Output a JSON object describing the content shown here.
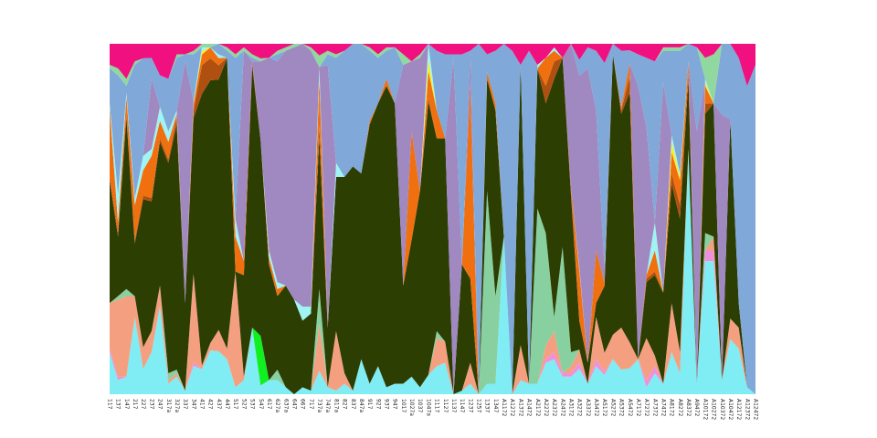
{
  "chart_data": {
    "type": "area",
    "stacking": "percent",
    "title": "",
    "xlabel": "",
    "ylabel": "",
    "ylim": [
      0,
      1
    ],
    "grid": false,
    "legend": "none",
    "categories": [
      "117",
      "137",
      "147",
      "217",
      "227",
      "237",
      "247",
      "317a",
      "327a",
      "337",
      "347",
      "417",
      "427",
      "437",
      "447",
      "517",
      "527",
      "537",
      "547",
      "617",
      "627a",
      "637a",
      "647",
      "667",
      "717",
      "737a",
      "747a",
      "817a",
      "827",
      "837",
      "847a",
      "917",
      "927",
      "937",
      "947",
      "1017",
      "1027a",
      "1037",
      "1047a",
      "1117",
      "1127",
      "1137",
      "1147",
      "1237",
      "1257",
      "1337",
      "1347",
      "A1172",
      "A1272",
      "A1372",
      "A1472",
      "A2172",
      "A2272",
      "A2372",
      "A2472",
      "A3172",
      "A3272",
      "A3372",
      "A3472",
      "A5172",
      "A5272",
      "A5372",
      "A5472",
      "A7172",
      "A7272",
      "A7372",
      "A7472",
      "A8172",
      "A8272",
      "A8372",
      "A9472",
      "A10172",
      "A10272",
      "A10372",
      "A10472",
      "A12172",
      "A12372",
      "A12472"
    ],
    "colors": {
      "cyan_base": "#80ecf4",
      "pink": "#f090d8",
      "salmon": "#f4a080",
      "mint": "#88d0a0",
      "bright_green": "#10f020",
      "dark_green": "#2c3e02",
      "brown": "#b05010",
      "orange": "#f07010",
      "yellow": "#f8f020",
      "light_cyan": "#a0f4f4",
      "lavender": "#a088c0",
      "steel_blue": "#80a8d8",
      "light_green": "#90d8a0",
      "magenta": "#f01080"
    },
    "series": [
      {
        "color_key": "cyan_base",
        "values": [
          0.12,
          0.04,
          0.05,
          0.22,
          0.07,
          0.12,
          0.25,
          0.03,
          0.05,
          0.01,
          0.08,
          0.07,
          0.12,
          0.12,
          0.1,
          0.02,
          0.04,
          0.19,
          0.03,
          0.04,
          0.04,
          0.02,
          0.0,
          0.02,
          0.01,
          0.02,
          0.02,
          0.01,
          0.03,
          0.01,
          0.1,
          0.03,
          0.08,
          0.02,
          0.03,
          0.03,
          0.05,
          0.02,
          0.05,
          0.08,
          0.09,
          0.0,
          0.01,
          0.03,
          0.0,
          0.03,
          0.03,
          0.45,
          0.0,
          0.04,
          0.03,
          0.03,
          0.09,
          0.1,
          0.05,
          0.05,
          0.08,
          0.03,
          0.08,
          0.06,
          0.1,
          0.07,
          0.08,
          0.1,
          0.02,
          0.06,
          0.03,
          0.12,
          0.06,
          0.7,
          0.03,
          0.38,
          0.38,
          0.04,
          0.16,
          0.13,
          0.02,
          0.0
        ]
      },
      {
        "color_key": "pink",
        "values": [
          0.01,
          0.01,
          0.0,
          0.0,
          0.0,
          0.0,
          0.0,
          0.0,
          0.0,
          0.0,
          0.01,
          0.0,
          0.0,
          0.0,
          0.0,
          0.0,
          0.0,
          0.0,
          0.0,
          0.0,
          0.0,
          0.0,
          0.0,
          0.0,
          0.0,
          0.0,
          0.0,
          0.0,
          0.0,
          0.0,
          0.0,
          0.0,
          0.0,
          0.0,
          0.0,
          0.0,
          0.0,
          0.0,
          0.0,
          0.0,
          0.0,
          0.0,
          0.0,
          0.0,
          0.0,
          0.0,
          0.0,
          0.0,
          0.0,
          0.0,
          0.0,
          0.0,
          0.01,
          0.02,
          0.01,
          0.01,
          0.02,
          0.0,
          0.02,
          0.01,
          0.0,
          0.0,
          0.0,
          0.0,
          0.02,
          0.02,
          0.0,
          0.0,
          0.0,
          0.0,
          0.0,
          0.03,
          0.03,
          0.0,
          0.0,
          0.0,
          0.0,
          0.0
        ]
      },
      {
        "color_key": "salmon",
        "values": [
          0.13,
          0.22,
          0.23,
          0.06,
          0.06,
          0.06,
          0.06,
          0.01,
          0.01,
          0.0,
          0.25,
          0.01,
          0.02,
          0.06,
          0.03,
          0.33,
          0.01,
          0.0,
          0.0,
          0.0,
          0.0,
          0.0,
          0.0,
          0.0,
          0.0,
          0.04,
          0.0,
          0.17,
          0.03,
          0.0,
          0.0,
          0.0,
          0.0,
          0.0,
          0.0,
          0.0,
          0.0,
          0.0,
          0.0,
          0.08,
          0.06,
          0.0,
          0.0,
          0.06,
          0.0,
          0.0,
          0.0,
          0.0,
          0.0,
          0.1,
          0.0,
          0.0,
          0.04,
          0.06,
          0.0,
          0.02,
          0.04,
          0.0,
          0.12,
          0.06,
          0.07,
          0.12,
          0.08,
          0.0,
          0.12,
          0.03,
          0.0,
          0.14,
          0.06,
          0.0,
          0.0,
          0.0,
          0.04,
          0.0,
          0.06,
          0.06,
          0.0,
          0.0
        ]
      },
      {
        "color_key": "mint",
        "values": [
          0.0,
          0.01,
          0.02,
          0.0,
          0.0,
          0.0,
          0.0,
          0.02,
          0.01,
          0.0,
          0.0,
          0.0,
          0.0,
          0.0,
          0.0,
          0.0,
          0.0,
          0.0,
          0.0,
          0.0,
          0.03,
          0.0,
          0.0,
          0.0,
          0.0,
          0.03,
          0.0,
          0.0,
          0.0,
          0.0,
          0.0,
          0.0,
          0.0,
          0.0,
          0.0,
          0.0,
          0.0,
          0.0,
          0.0,
          0.02,
          0.0,
          0.0,
          0.0,
          0.0,
          0.0,
          0.55,
          0.25,
          0.0,
          0.0,
          0.0,
          0.0,
          0.5,
          0.32,
          0.04,
          0.36,
          0.04,
          0.0,
          0.0,
          0.0,
          0.0,
          0.0,
          0.0,
          0.0,
          0.0,
          0.0,
          0.0,
          0.0,
          0.0,
          0.0,
          0.0,
          0.0,
          0.05,
          0.0,
          0.0,
          0.0,
          0.0,
          0.0,
          0.0
        ]
      },
      {
        "color_key": "bright_green",
        "values": [
          0.0,
          0.0,
          0.0,
          0.0,
          0.0,
          0.0,
          0.0,
          0.0,
          0.0,
          0.0,
          0.0,
          0.0,
          0.0,
          0.0,
          0.0,
          0.0,
          0.0,
          0.0,
          0.17,
          0.0,
          0.0,
          0.0,
          0.0,
          0.0,
          0.0,
          0.0,
          0.0,
          0.0,
          0.0,
          0.0,
          0.0,
          0.0,
          0.0,
          0.0,
          0.0,
          0.0,
          0.0,
          0.0,
          0.0,
          0.0,
          0.0,
          0.0,
          0.0,
          0.0,
          0.0,
          0.0,
          0.0,
          0.0,
          0.0,
          0.0,
          0.0,
          0.0,
          0.0,
          0.0,
          0.0,
          0.0,
          0.0,
          0.0,
          0.0,
          0.0,
          0.0,
          0.0,
          0.0,
          0.0,
          0.0,
          0.0,
          0.0,
          0.0,
          0.0,
          0.0,
          0.0,
          0.0,
          0.0,
          0.0,
          0.0,
          0.0,
          0.0,
          0.0
        ]
      },
      {
        "color_key": "dark_green",
        "values": [
          0.35,
          0.17,
          0.49,
          0.15,
          0.41,
          0.37,
          0.41,
          0.6,
          0.7,
          0.25,
          0.44,
          0.76,
          0.72,
          0.7,
          0.83,
          0.0,
          0.29,
          0.75,
          0.67,
          0.33,
          0.21,
          0.29,
          0.27,
          0.19,
          0.22,
          0.13,
          0.17,
          0.44,
          0.56,
          0.64,
          0.53,
          0.74,
          0.75,
          0.86,
          0.8,
          0.28,
          0.39,
          0.56,
          0.71,
          0.55,
          0.58,
          0.0,
          0.36,
          0.24,
          0.0,
          0.32,
          0.53,
          0.0,
          0.0,
          0.8,
          0.0,
          0.4,
          0.37,
          0.68,
          0.54,
          0.45,
          0.09,
          0.06,
          0.04,
          0.21,
          0.8,
          0.61,
          0.77,
          0.0,
          0.16,
          0.23,
          0.26,
          0.34,
          0.38,
          0.2,
          0.0,
          0.34,
          0.38,
          0.0,
          0.58,
          0.07,
          0.0,
          0.0
        ]
      },
      {
        "color_key": "brown",
        "values": [
          0.01,
          0.01,
          0.01,
          0.01,
          0.01,
          0.01,
          0.01,
          0.01,
          0.02,
          0.0,
          0.02,
          0.08,
          0.06,
          0.04,
          0.0,
          0.0,
          0.0,
          0.0,
          0.0,
          0.0,
          0.0,
          0.0,
          0.0,
          0.0,
          0.0,
          0.01,
          0.0,
          0.0,
          0.0,
          0.0,
          0.0,
          0.0,
          0.0,
          0.0,
          0.0,
          0.0,
          0.0,
          0.0,
          0.01,
          0.0,
          0.0,
          0.0,
          0.0,
          0.0,
          0.0,
          0.0,
          0.0,
          0.0,
          0.0,
          0.0,
          0.0,
          0.0,
          0.05,
          0.05,
          0.0,
          0.01,
          0.0,
          0.0,
          0.0,
          0.0,
          0.0,
          0.01,
          0.05,
          0.0,
          0.01,
          0.01,
          0.0,
          0.03,
          0.04,
          0.02,
          0.0,
          0.03,
          0.0,
          0.0,
          0.0,
          0.0,
          0.0,
          0.0
        ]
      },
      {
        "color_key": "orange",
        "values": [
          0.2,
          0.03,
          0.05,
          0.1,
          0.07,
          0.12,
          0.05,
          0.05,
          0.01,
          0.0,
          0.02,
          0.03,
          0.03,
          0.02,
          0.0,
          0.1,
          0.04,
          0.01,
          0.0,
          0.02,
          0.02,
          0.0,
          0.0,
          0.0,
          0.0,
          0.04,
          0.0,
          0.0,
          0.0,
          0.0,
          0.0,
          0.01,
          0.0,
          0.02,
          0.0,
          0.0,
          0.31,
          0.0,
          0.07,
          0.08,
          0.0,
          0.0,
          0.0,
          0.55,
          0.0,
          0.02,
          0.02,
          0.0,
          0.0,
          0.0,
          0.0,
          0.0,
          0.08,
          0.03,
          0.0,
          0.01,
          0.16,
          0.0,
          0.15,
          0.01,
          0.0,
          0.01,
          0.04,
          0.0,
          0.01,
          0.06,
          0.0,
          0.06,
          0.07,
          0.03,
          0.0,
          0.05,
          0.0,
          0.0,
          0.0,
          0.0,
          0.0,
          0.0
        ]
      },
      {
        "color_key": "yellow",
        "values": [
          0.0,
          0.0,
          0.0,
          0.0,
          0.0,
          0.0,
          0.0,
          0.0,
          0.0,
          0.0,
          0.0,
          0.01,
          0.0,
          0.0,
          0.0,
          0.0,
          0.0,
          0.0,
          0.0,
          0.0,
          0.0,
          0.0,
          0.0,
          0.0,
          0.0,
          0.0,
          0.0,
          0.0,
          0.0,
          0.0,
          0.0,
          0.0,
          0.0,
          0.0,
          0.0,
          0.0,
          0.0,
          0.0,
          0.03,
          0.0,
          0.0,
          0.0,
          0.0,
          0.0,
          0.0,
          0.0,
          0.0,
          0.0,
          0.0,
          0.0,
          0.0,
          0.0,
          0.0,
          0.0,
          0.0,
          0.0,
          0.0,
          0.0,
          0.0,
          0.0,
          0.0,
          0.0,
          0.0,
          0.0,
          0.0,
          0.0,
          0.0,
          0.03,
          0.01,
          0.0,
          0.0,
          0.01,
          0.0,
          0.0,
          0.0,
          0.0,
          0.0,
          0.0
        ]
      },
      {
        "color_key": "light_cyan",
        "values": [
          0.01,
          0.08,
          0.01,
          0.02,
          0.04,
          0.02,
          0.04,
          0.03,
          0.01,
          0.0,
          0.01,
          0.01,
          0.0,
          0.01,
          0.0,
          0.05,
          0.0,
          0.0,
          0.0,
          0.02,
          0.02,
          0.0,
          0.0,
          0.04,
          0.02,
          0.01,
          0.0,
          0.04,
          0.0,
          0.0,
          0.0,
          0.0,
          0.0,
          0.0,
          0.0,
          0.0,
          0.0,
          0.0,
          0.04,
          0.0,
          0.0,
          0.0,
          0.0,
          0.0,
          0.0,
          0.0,
          0.0,
          0.0,
          0.0,
          0.0,
          0.0,
          0.01,
          0.0,
          0.01,
          0.0,
          0.0,
          0.01,
          0.0,
          0.0,
          0.0,
          0.0,
          0.0,
          0.0,
          0.0,
          0.0,
          0.08,
          0.0,
          0.02,
          0.01,
          0.0,
          0.0,
          0.01,
          0.0,
          0.0,
          0.0,
          0.0,
          0.0,
          0.0
        ]
      },
      {
        "color_key": "lavender",
        "values": [
          0.0,
          0.0,
          0.0,
          0.0,
          0.0,
          0.2,
          0.0,
          0.0,
          0.0,
          0.69,
          0.0,
          0.0,
          0.0,
          0.0,
          0.0,
          0.0,
          0.6,
          0.0,
          0.27,
          0.55,
          0.63,
          0.67,
          0.72,
          0.75,
          0.73,
          0.0,
          0.75,
          0.0,
          0.0,
          0.0,
          0.0,
          0.0,
          0.0,
          0.0,
          0.0,
          0.63,
          0.2,
          0.38,
          0.0,
          0.0,
          0.0,
          0.96,
          0.0,
          0.1,
          0.0,
          0.0,
          0.0,
          0.0,
          0.0,
          0.0,
          0.0,
          0.0,
          0.0,
          0.0,
          0.0,
          0.41,
          0.6,
          0.84,
          0.4,
          0.04,
          0.0,
          0.0,
          0.0,
          0.78,
          0.42,
          0.0,
          0.6,
          0.0,
          0.0,
          0.0,
          0.75,
          0.0,
          0.0,
          0.75,
          0.0,
          0.0,
          0.0,
          0.0
        ]
      },
      {
        "color_key": "steel_blue",
        "values": [
          0.1,
          0.34,
          0.02,
          0.38,
          0.27,
          0.06,
          0.09,
          0.15,
          0.15,
          0.02,
          0.13,
          0.0,
          0.0,
          0.03,
          0.02,
          0.46,
          0.0,
          0.01,
          0.0,
          0.0,
          0.02,
          0.0,
          0.0,
          0.0,
          0.0,
          0.0,
          0.03,
          0.3,
          0.36,
          0.35,
          0.37,
          0.2,
          0.13,
          0.08,
          0.16,
          0.0,
          0.0,
          0.0,
          0.0,
          0.17,
          0.24,
          0.01,
          0.6,
          0.0,
          1.0,
          0.05,
          0.15,
          0.55,
          0.98,
          0.0,
          0.95,
          0.0,
          0.0,
          0.0,
          0.0,
          0.0,
          0.05,
          0.06,
          0.17,
          0.65,
          0.03,
          0.16,
          0.04,
          0.09,
          0.2,
          0.46,
          0.09,
          0.24,
          0.35,
          0.05,
          0.25,
          0.0,
          0.0,
          0.2,
          0.22,
          0.7,
          0.86,
          0.94
        ]
      },
      {
        "color_key": "light_green",
        "values": [
          0.01,
          0.02,
          0.02,
          0.01,
          0.0,
          0.0,
          0.0,
          0.0,
          0.01,
          0.0,
          0.01,
          0.01,
          0.01,
          0.0,
          0.01,
          0.01,
          0.01,
          0.01,
          0.01,
          0.0,
          0.01,
          0.01,
          0.01,
          0.0,
          0.01,
          0.01,
          0.01,
          0.01,
          0.0,
          0.0,
          0.0,
          0.01,
          0.01,
          0.01,
          0.0,
          0.03,
          0.0,
          0.01,
          0.0,
          0.0,
          0.0,
          0.0,
          0.0,
          0.0,
          0.0,
          0.0,
          0.0,
          0.0,
          0.0,
          0.0,
          0.0,
          0.0,
          0.0,
          0.0,
          0.0,
          0.0,
          0.0,
          0.0,
          0.0,
          0.0,
          0.0,
          0.0,
          0.0,
          0.0,
          0.0,
          0.0,
          0.01,
          0.01,
          0.01,
          0.0,
          0.0,
          0.06,
          0.14,
          0.0,
          0.0,
          0.0,
          0.0,
          0.0
        ]
      },
      {
        "color_key": "magenta",
        "values": [
          0.06,
          0.07,
          0.1,
          0.05,
          0.04,
          0.04,
          0.09,
          0.1,
          0.03,
          0.03,
          0.02,
          0.0,
          0.0,
          0.0,
          0.01,
          0.03,
          0.01,
          0.03,
          0.05,
          0.04,
          0.02,
          0.01,
          0.0,
          0.0,
          0.01,
          0.01,
          0.02,
          0.03,
          0.02,
          0.0,
          0.0,
          0.01,
          0.03,
          0.01,
          0.01,
          0.03,
          0.05,
          0.03,
          0.0,
          0.02,
          0.03,
          0.03,
          0.03,
          0.02,
          0.0,
          0.03,
          0.02,
          0.0,
          0.02,
          0.06,
          0.02,
          0.06,
          0.04,
          0.01,
          0.04,
          0.0,
          0.05,
          0.01,
          0.02,
          0.06,
          0.0,
          0.02,
          0.02,
          0.03,
          0.04,
          0.05,
          0.01,
          0.01,
          0.01,
          0.0,
          0.01,
          0.04,
          0.03,
          0.0,
          0.0,
          0.04,
          0.12,
          0.06
        ]
      }
    ]
  }
}
